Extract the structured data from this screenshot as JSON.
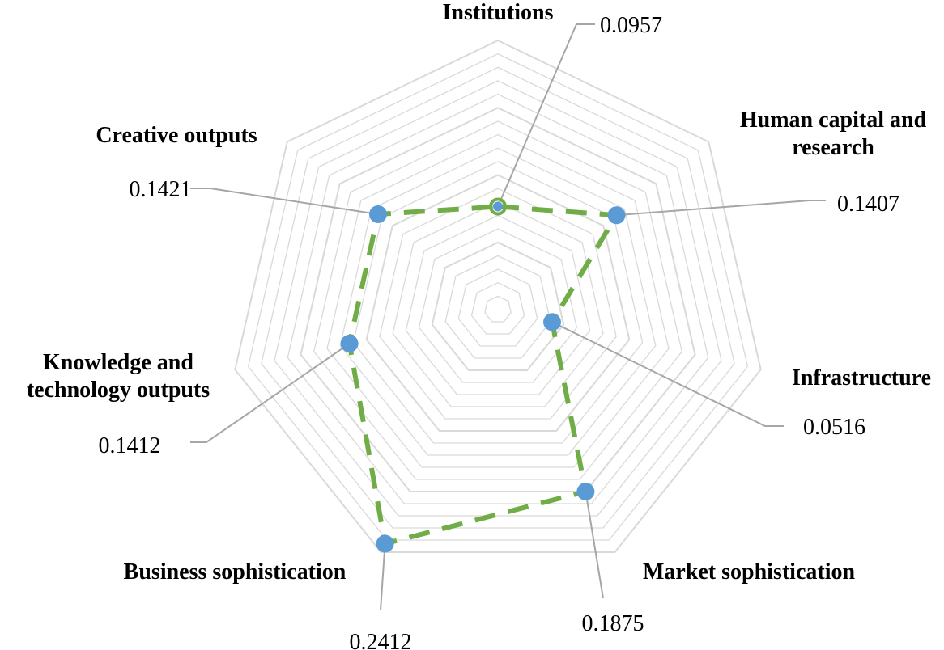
{
  "chart_data": {
    "type": "radar",
    "categories": [
      "Institutions",
      "Human capital and research",
      "Infrastructure",
      "Market sophistication",
      "Business sophistication",
      "Knowledge and technology outputs",
      "Creative outputs"
    ],
    "category_lines": [
      [
        "Institutions"
      ],
      [
        "Human capital and",
        "research"
      ],
      [
        "Infrastructure"
      ],
      [
        "Market sophistication"
      ],
      [
        "Business sophistication"
      ],
      [
        "Knowledge and",
        "technology outputs"
      ],
      [
        "Creative outputs"
      ]
    ],
    "values": [
      0.0957,
      0.1407,
      0.0516,
      0.1875,
      0.2412,
      0.1412,
      0.1421
    ],
    "value_labels": [
      "0.0957",
      "0.1407",
      "0.0516",
      "0.1875",
      "0.2412",
      "0.1412",
      "0.1421"
    ],
    "grid_levels": 20,
    "grid": true,
    "legend": "none",
    "colors": {
      "line": "#70AD47",
      "marker": "#5B9BD5",
      "grid": "#D9D9D9",
      "leader": "#A6A6A6"
    }
  }
}
